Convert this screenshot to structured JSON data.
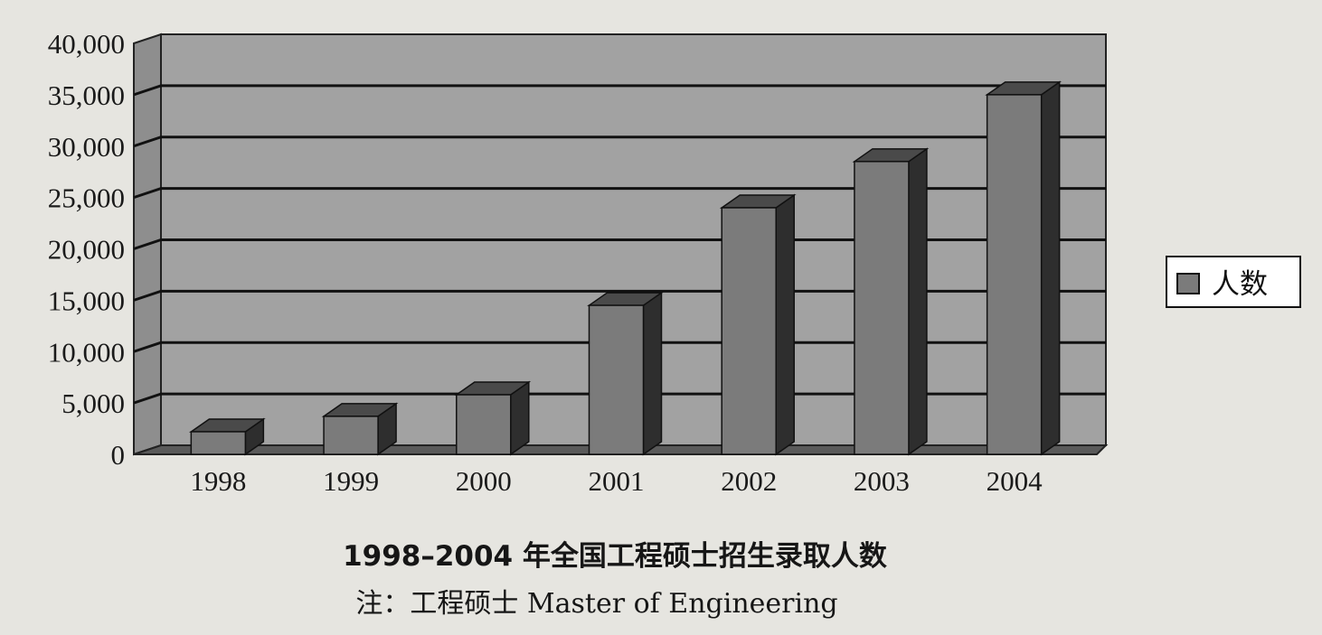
{
  "chart_data": {
    "type": "bar",
    "categories": [
      "1998",
      "1999",
      "2000",
      "2001",
      "2002",
      "2003",
      "2004"
    ],
    "series": [
      {
        "name": "人数",
        "values": [
          2200,
          3700,
          5800,
          14500,
          24000,
          28500,
          35000
        ]
      }
    ],
    "ylim": [
      0,
      40000
    ],
    "yticks": [
      "0",
      "5,000",
      "10,000",
      "15,000",
      "20,000",
      "25,000",
      "30,000",
      "35,000",
      "40,000"
    ],
    "legend": "right",
    "grid": true,
    "style": "3d",
    "colors": {
      "bar_front": "#7b7b7b",
      "bar_top": "#4a4a4a",
      "bar_side": "#2e2e2e",
      "plot_back": "#a2a2a2"
    }
  },
  "caption": {
    "title": "1998–2004 年全国工程硕士招生录取人数",
    "note": "注：工程硕士 Master of Engineering"
  }
}
